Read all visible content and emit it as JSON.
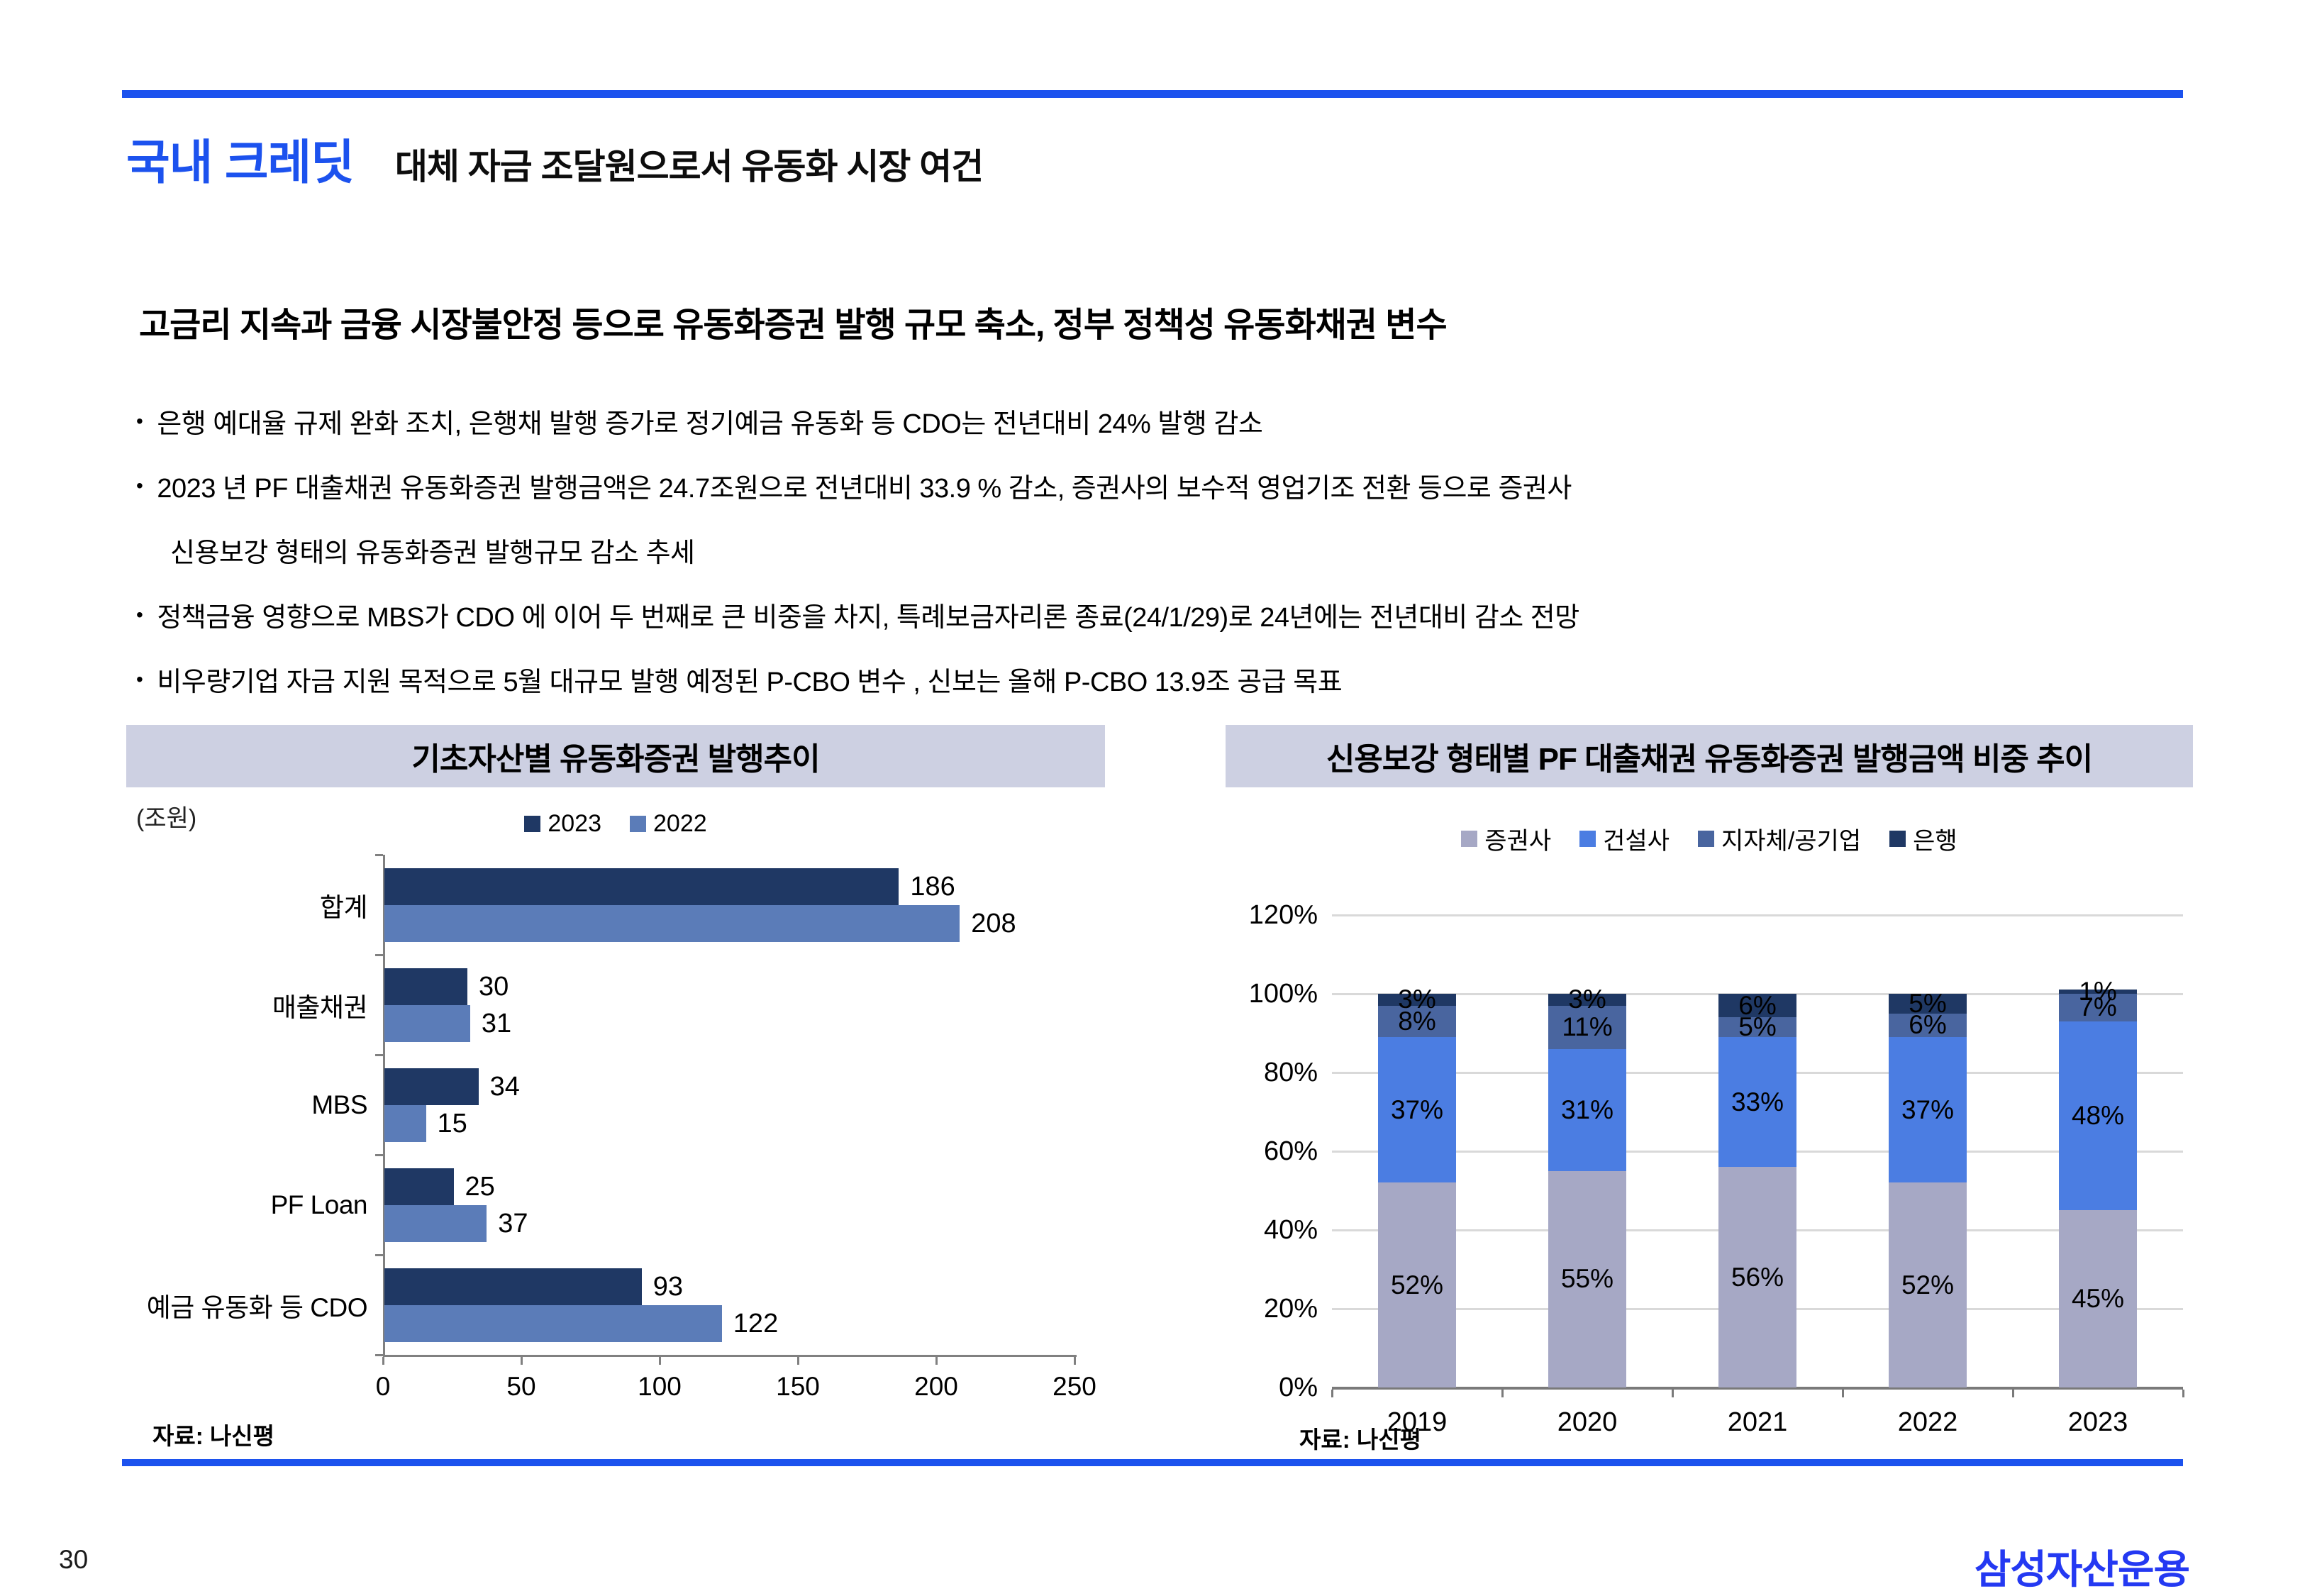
{
  "slide": {
    "title": "국내 크레딧",
    "subtitle": "대체 자금 조달원으로서 유동화 시장 여건",
    "heading": "고금리 지속과 금융 시장불안정 등으로 유동화증권 발행 규모 축소, 정부 정책성 유동화채권 변수",
    "bullets": [
      {
        "marker": true,
        "text": "은행 예대율 규제 완화 조치, 은행채 발행 증가로 정기예금 유동화 등 CDO는 전년대비 24% 발행 감소"
      },
      {
        "marker": true,
        "text": "2023 년 PF 대출채권 유동화증권 발행금액은 24.7조원으로  전년대비 33.9 % 감소, 증권사의 보수적 영업기조 전환 등으로 증권사"
      },
      {
        "marker": false,
        "text": "신용보강 형태의 유동화증권 발행규모 감소 추세"
      },
      {
        "marker": true,
        "text": "정책금융 영향으로 MBS가 CDO 에 이어 두 번째로 큰 비중을 차지, 특례보금자리론 종료(24/1/29)로 24년에는 전년대비 감소 전망"
      },
      {
        "marker": true,
        "text": "비우량기업 자금 지원 목적으로 5월 대규모 발행 예정된 P-CBO 변수 , 신보는 올해 P-CBO 13.9조 공급 목표"
      }
    ],
    "page_number": "30",
    "logo": "삼성자산운용",
    "accent_blue": "#1c52ee",
    "logo_blue": "#2439f2",
    "panel_header_bg": "#cdd0e2"
  },
  "chart_data": [
    {
      "type": "bar",
      "orientation": "horizontal",
      "title": "기초자산별 유동화증권 발행추이",
      "unit_label": "(조원)",
      "categories": [
        "합계",
        "매출채권",
        "MBS",
        "PF Loan",
        "예금 유동화 등 CDO"
      ],
      "series": [
        {
          "name": "2023",
          "color": "#1f3864",
          "values": [
            186,
            30,
            34,
            25,
            93
          ]
        },
        {
          "name": "2022",
          "color": "#5b7cb8",
          "values": [
            208,
            31,
            15,
            37,
            122
          ]
        }
      ],
      "xlim": [
        0,
        250
      ],
      "xticks": [
        0,
        50,
        100,
        150,
        200,
        250
      ],
      "grid": false,
      "legend_position": "top",
      "source": "자료: 나신평"
    },
    {
      "type": "bar",
      "subtype": "stacked-percent-column",
      "title": "신용보강 형태별 PF 대출채권 유동화증권 발행금액 비중 추이",
      "categories": [
        "2019",
        "2020",
        "2021",
        "2022",
        "2023"
      ],
      "series": [
        {
          "name": "증권사",
          "color": "#a6a8c5",
          "values": [
            52,
            55,
            56,
            52,
            45
          ]
        },
        {
          "name": "건설사",
          "color": "#4b7de2",
          "values": [
            37,
            31,
            33,
            37,
            48
          ]
        },
        {
          "name": "지자체/공기업",
          "color": "#49659f",
          "values": [
            8,
            11,
            5,
            6,
            7
          ]
        },
        {
          "name": "은행",
          "color": "#1f3864",
          "values": [
            3,
            3,
            6,
            5,
            1
          ]
        }
      ],
      "ylim": [
        0,
        120
      ],
      "yticks": [
        "0%",
        "20%",
        "40%",
        "60%",
        "80%",
        "100%",
        "120%"
      ],
      "grid": true,
      "legend_position": "top",
      "source": "자료: 나신평"
    }
  ]
}
